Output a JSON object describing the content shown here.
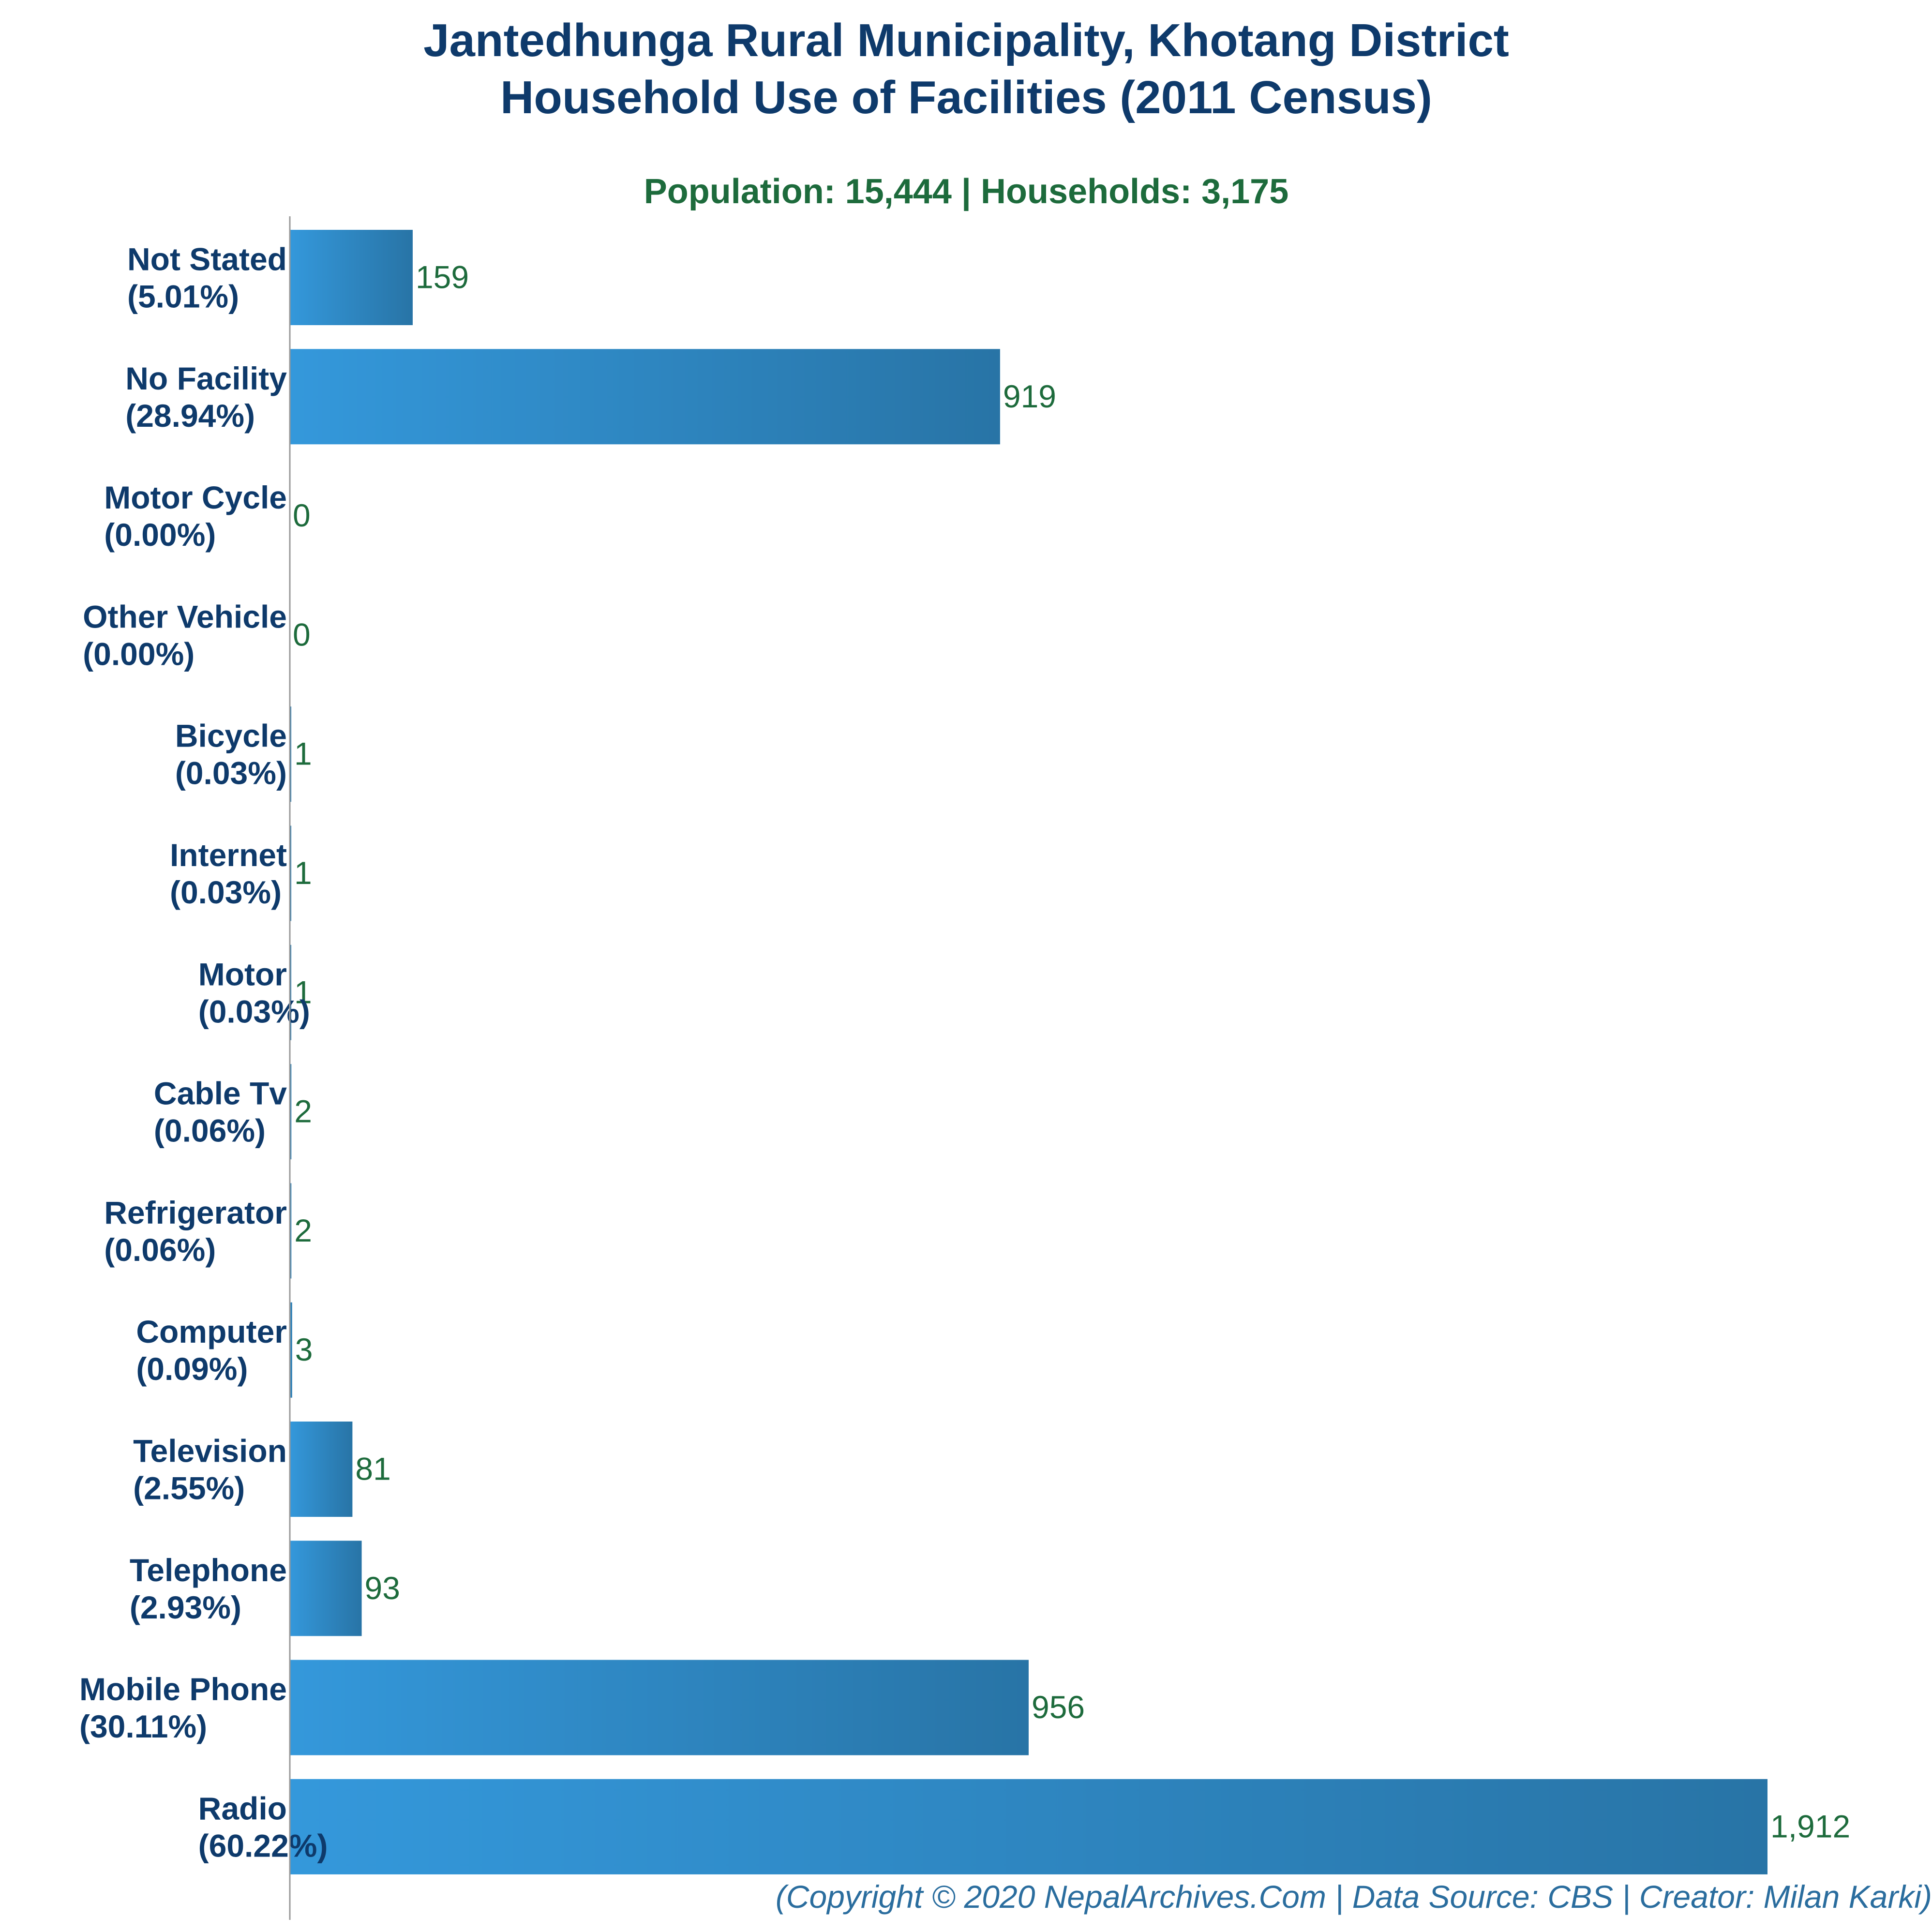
{
  "chart_data": {
    "type": "bar",
    "orientation": "horizontal",
    "title": [
      "Jantedhunga Rural Municipality, Khotang District",
      "Household Use of Facilities (2011 Census)"
    ],
    "subtitle": "Population: 15,444 | Households: 3,175",
    "footer": "(Copyright © 2020 NepalArchives.Com | Data Source: CBS | Creator: Milan Karki)",
    "categories": [
      {
        "name": "Not Stated",
        "pct": "(5.01%)"
      },
      {
        "name": "No Facility",
        "pct": "(28.94%)"
      },
      {
        "name": "Motor Cycle",
        "pct": "(0.00%)"
      },
      {
        "name": "Other Vehicle",
        "pct": "(0.00%)"
      },
      {
        "name": "Bicycle",
        "pct": "(0.03%)"
      },
      {
        "name": "Internet",
        "pct": "(0.03%)"
      },
      {
        "name": "Motor",
        "pct": "(0.03%)"
      },
      {
        "name": "Cable Tv",
        "pct": "(0.06%)"
      },
      {
        "name": "Refrigerator",
        "pct": "(0.06%)"
      },
      {
        "name": "Computer",
        "pct": "(0.09%)"
      },
      {
        "name": "Television",
        "pct": "(2.55%)"
      },
      {
        "name": "Telephone",
        "pct": "(2.93%)"
      },
      {
        "name": "Mobile Phone",
        "pct": "(30.11%)"
      },
      {
        "name": "Radio",
        "pct": "(60.22%)"
      }
    ],
    "values": [
      159,
      919,
      0,
      0,
      1,
      1,
      1,
      2,
      2,
      3,
      81,
      93,
      956,
      1912
    ],
    "value_labels": [
      "159",
      "919",
      "0",
      "0",
      "1",
      "1",
      "1",
      "2",
      "2",
      "3",
      "81",
      "93",
      "956",
      "1,912"
    ],
    "xlim": [
      0,
      2000
    ],
    "grid": false,
    "colors": {
      "bar_start": "#3498db",
      "bar_end": "#2874a6",
      "title": "#0e3a6b",
      "subtitle": "#1d6b3c",
      "value_label": "#1d6b3c",
      "footer": "#2a6d9e"
    }
  }
}
